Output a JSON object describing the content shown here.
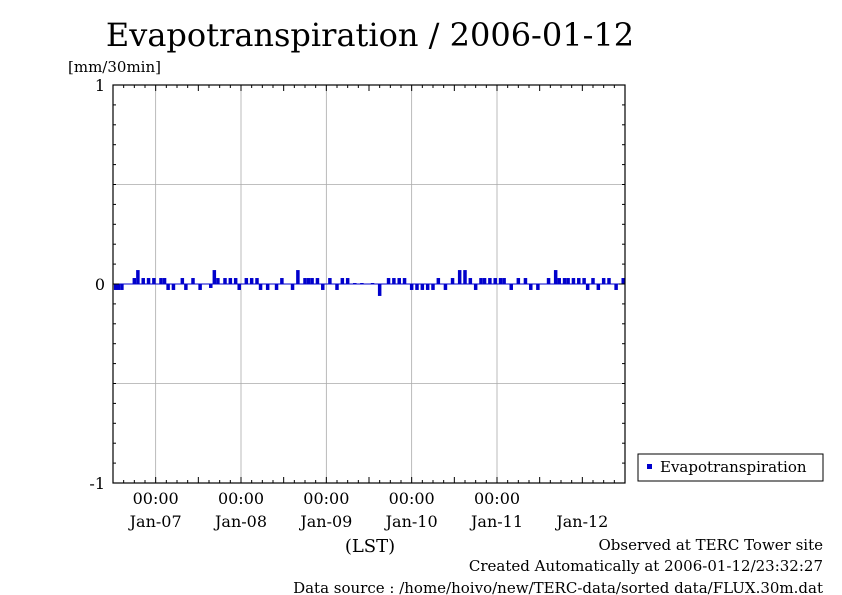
{
  "chart_data": {
    "type": "bar",
    "title": "Evapotranspiration / 2006-01-12",
    "unit_label": "[mm/30min]",
    "xlabel": "(LST)",
    "ylim": [
      -1,
      1
    ],
    "y_ticks": [
      "1",
      "0",
      "-1"
    ],
    "x_range_days": [
      "2006-01-06 12:00",
      "2006-01-12 12:00"
    ],
    "x_time_ticks": [
      "00:00",
      "00:00",
      "00:00",
      "00:00",
      "00:00"
    ],
    "x_date_ticks": [
      "Jan-07",
      "Jan-08",
      "Jan-09",
      "Jan-10",
      "Jan-11",
      "Jan-12"
    ],
    "grid": true,
    "legend_position": "right",
    "series": [
      {
        "name": "Evapotranspiration",
        "color": "#0000cc",
        "x": [
          "2006-01-06 12:45",
          "2006-01-06 13:30",
          "2006-01-06 14:30",
          "2006-01-06 18:00",
          "2006-01-06 19:00",
          "2006-01-06 20:30",
          "2006-01-06 22:00",
          "2006-01-06 23:30",
          "2006-01-07 01:30",
          "2006-01-07 02:30",
          "2006-01-07 03:30",
          "2006-01-07 05:00",
          "2006-01-07 07:30",
          "2006-01-07 08:30",
          "2006-01-07 10:30",
          "2006-01-07 12:30",
          "2006-01-07 15:30",
          "2006-01-07 16:30",
          "2006-01-07 17:30",
          "2006-01-07 19:30",
          "2006-01-07 21:00",
          "2006-01-07 22:30",
          "2006-01-07 23:30",
          "2006-01-08 01:30",
          "2006-01-08 03:00",
          "2006-01-08 04:30",
          "2006-01-08 05:30",
          "2006-01-08 07:30",
          "2006-01-08 10:00",
          "2006-01-08 11:30",
          "2006-01-08 14:30",
          "2006-01-08 16:00",
          "2006-01-08 18:00",
          "2006-01-08 19:00",
          "2006-01-08 20:00",
          "2006-01-08 21:30",
          "2006-01-08 23:00",
          "2006-01-09 01:00",
          "2006-01-09 03:00",
          "2006-01-09 04:30",
          "2006-01-09 06:00",
          "2006-01-09 08:00",
          "2006-01-09 10:00",
          "2006-01-09 13:00",
          "2006-01-09 15:00",
          "2006-01-09 17:30",
          "2006-01-09 19:00",
          "2006-01-09 20:30",
          "2006-01-09 22:00",
          "2006-01-10 00:00",
          "2006-01-10 01:30",
          "2006-01-10 03:00",
          "2006-01-10 04:30",
          "2006-01-10 06:00",
          "2006-01-10 07:30",
          "2006-01-10 09:30",
          "2006-01-10 11:30",
          "2006-01-10 13:30",
          "2006-01-10 15:00",
          "2006-01-10 16:30",
          "2006-01-10 18:00",
          "2006-01-10 19:30",
          "2006-01-10 20:30",
          "2006-01-10 22:00",
          "2006-01-10 23:30",
          "2006-01-11 01:00",
          "2006-01-11 02:00",
          "2006-01-11 04:00",
          "2006-01-11 06:00",
          "2006-01-11 08:00",
          "2006-01-11 09:30",
          "2006-01-11 11:30",
          "2006-01-11 14:30",
          "2006-01-11 16:30",
          "2006-01-11 17:30",
          "2006-01-11 19:00",
          "2006-01-11 20:00",
          "2006-01-11 21:30",
          "2006-01-11 23:00",
          "2006-01-12 00:30",
          "2006-01-12 01:30",
          "2006-01-12 03:00",
          "2006-01-12 04:30",
          "2006-01-12 06:00",
          "2006-01-12 07:30",
          "2006-01-12 09:30",
          "2006-01-12 11:30"
        ],
        "values": [
          -0.03,
          -0.03,
          -0.03,
          0.03,
          0.07,
          0.03,
          0.03,
          0.03,
          0.03,
          0.03,
          -0.03,
          -0.03,
          0.03,
          -0.03,
          0.03,
          -0.03,
          -0.02,
          0.07,
          0.03,
          0.03,
          0.03,
          0.03,
          -0.03,
          0.03,
          0.03,
          0.03,
          -0.03,
          -0.03,
          -0.03,
          0.03,
          -0.03,
          0.07,
          0.03,
          0.03,
          0.03,
          0.03,
          -0.03,
          0.03,
          -0.03,
          0.03,
          0.03,
          0.005,
          0.005,
          0.005,
          -0.06,
          0.03,
          0.03,
          0.03,
          0.03,
          -0.03,
          -0.03,
          -0.03,
          -0.03,
          -0.03,
          0.03,
          -0.03,
          0.03,
          0.07,
          0.07,
          0.03,
          -0.03,
          0.03,
          0.03,
          0.03,
          0.03,
          0.03,
          0.03,
          -0.03,
          0.03,
          0.03,
          -0.03,
          -0.03,
          0.03,
          0.07,
          0.03,
          0.03,
          0.03,
          0.03,
          0.03,
          0.03,
          -0.03,
          0.03,
          -0.03,
          0.03,
          0.03,
          -0.03,
          0.03
        ]
      }
    ]
  },
  "footer": {
    "line1": "Observed at TERC Tower site",
    "line2": "Created Automatically at 2006-01-12/23:32:27",
    "line3": "Data source : /home/hoivo/new/TERC-data/sorted data/FLUX.30m.dat"
  }
}
